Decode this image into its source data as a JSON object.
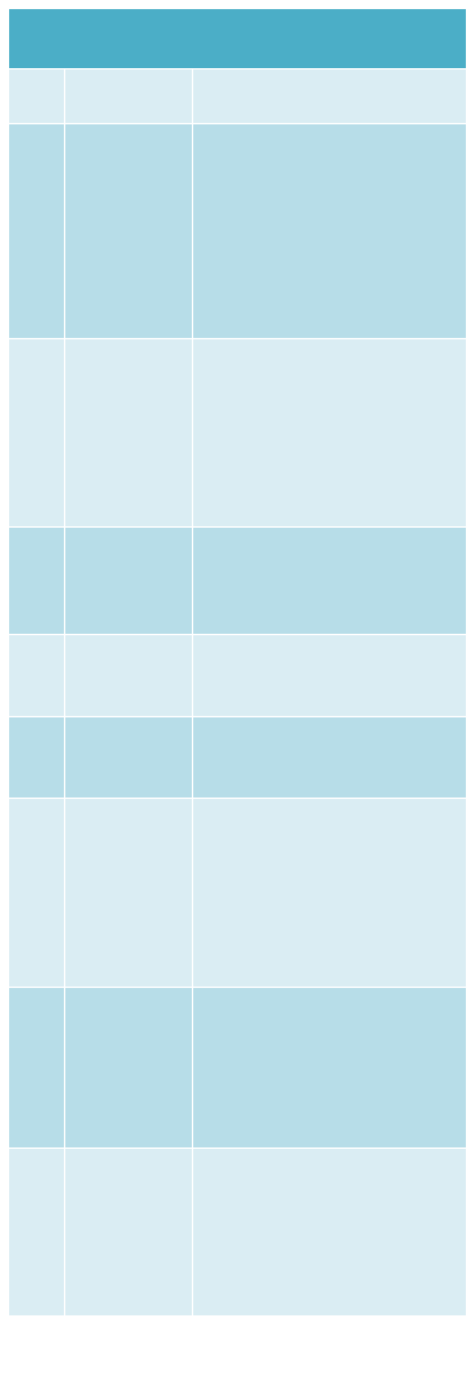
{
  "table": {
    "title": "",
    "header_color": "#4baec7",
    "row_colors": {
      "light": "#daedf3",
      "dark": "#b7dde8"
    },
    "rows": [
      {
        "col1": "",
        "col2": "",
        "col3": ""
      },
      {
        "col1": "",
        "col2": "",
        "col3": ""
      },
      {
        "col1": "",
        "col2": "",
        "col3": ""
      },
      {
        "col1": "",
        "col2": "",
        "col3": ""
      },
      {
        "col1": "",
        "col2": "",
        "col3": ""
      },
      {
        "col1": "",
        "col2": "",
        "col3": ""
      },
      {
        "col1": "",
        "col2": "",
        "col3": ""
      },
      {
        "col1": "",
        "col2": "",
        "col3": ""
      },
      {
        "col1": "",
        "col2": "",
        "col3": ""
      }
    ]
  }
}
